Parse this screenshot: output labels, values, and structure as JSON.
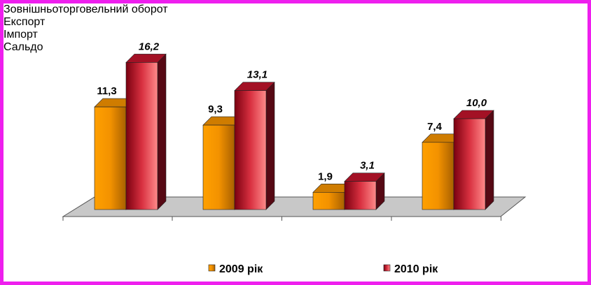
{
  "chart_data": {
    "type": "bar3d",
    "categories": [
      "Зовнішньоторговельний оборот",
      "Експорт",
      "Імпорт",
      "Сальдо"
    ],
    "series": [
      {
        "name": "2009 рік",
        "color": "#f39200",
        "values": [
          11.3,
          9.3,
          1.9,
          7.4
        ],
        "value_labels": [
          "11,3",
          "9,3",
          "1,9",
          "7,4"
        ]
      },
      {
        "name": "2010 рік",
        "color": "#c0142c",
        "values": [
          16.2,
          13.1,
          3.1,
          10.0
        ],
        "value_labels": [
          "16,2",
          "13,1",
          "3,1",
          "10,0"
        ]
      }
    ]
  }
}
